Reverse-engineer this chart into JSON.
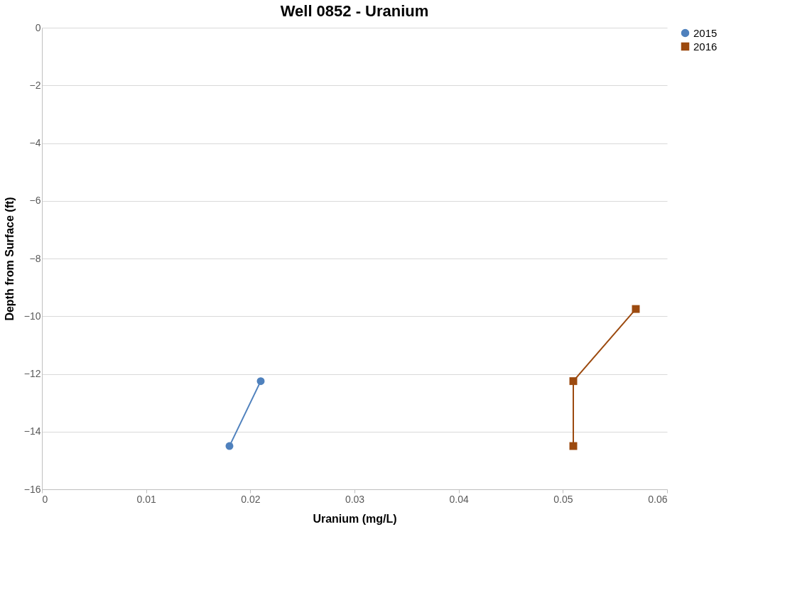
{
  "chart_data": {
    "type": "line",
    "title": "Well 0852 - Uranium",
    "xlabel": "Uranium (mg/L)",
    "ylabel": "Depth from Surface (ft)",
    "xlim": [
      0,
      0.06
    ],
    "xticks": [
      0,
      0.01,
      0.02,
      0.03,
      0.04,
      0.05,
      0.06
    ],
    "ylim": [
      -16,
      0
    ],
    "yticks": [
      -16,
      -14,
      -12,
      -10,
      -8,
      -6,
      -4,
      -2,
      0
    ],
    "grid": "y",
    "legend": "right",
    "line_style": "solid",
    "series": [
      {
        "name": "2015",
        "color": "#4f81bd",
        "marker": "circle",
        "x": [
          0.018,
          0.021
        ],
        "values": [
          -14.5,
          -12.25
        ]
      },
      {
        "name": "2016",
        "color": "#9c4a0f",
        "marker": "square",
        "x": [
          0.051,
          0.051,
          0.057
        ],
        "values": [
          -14.5,
          -12.25,
          -9.75
        ]
      }
    ]
  }
}
